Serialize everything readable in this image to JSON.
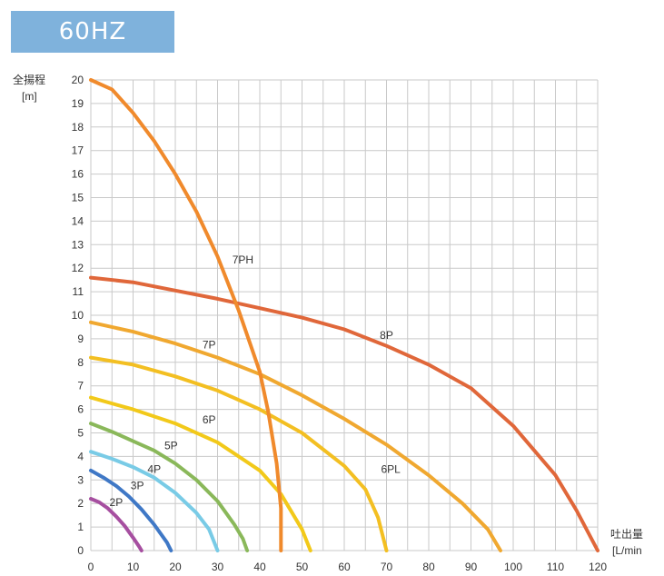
{
  "frequency_label": "60HZ",
  "chart_data": {
    "type": "line",
    "title": "",
    "ylabel": "全揚程",
    "yunit": "[m]",
    "xlabel": "吐出量",
    "xunit": "[L/min",
    "xlim": [
      0,
      120
    ],
    "ylim": [
      0,
      20
    ],
    "xticks": [
      0,
      10,
      20,
      30,
      40,
      50,
      60,
      70,
      80,
      90,
      100,
      110,
      120
    ],
    "yticks": [
      0,
      1,
      2,
      3,
      4,
      5,
      6,
      7,
      8,
      9,
      10,
      11,
      12,
      13,
      14,
      15,
      16,
      17,
      18,
      19,
      20
    ],
    "grid": true,
    "series": [
      {
        "name": "2P",
        "color": "#a64fa0",
        "label_at": [
          6,
          1.9
        ],
        "x": [
          0,
          2,
          4,
          6,
          8,
          10,
          11.5,
          12
        ],
        "y": [
          2.2,
          2.05,
          1.8,
          1.45,
          1.05,
          0.55,
          0.15,
          0
        ]
      },
      {
        "name": "3P",
        "color": "#3f78c6",
        "label_at": [
          11,
          2.6
        ],
        "x": [
          0,
          3,
          6,
          9,
          12,
          15,
          18,
          19
        ],
        "y": [
          3.4,
          3.1,
          2.75,
          2.3,
          1.75,
          1.1,
          0.35,
          0
        ]
      },
      {
        "name": "4P",
        "color": "#79cbe6",
        "label_at": [
          15,
          3.3
        ],
        "x": [
          0,
          5,
          10,
          15,
          20,
          25,
          28,
          30
        ],
        "y": [
          4.2,
          3.9,
          3.55,
          3.1,
          2.45,
          1.6,
          0.9,
          0
        ]
      },
      {
        "name": "5P",
        "color": "#8ab85a",
        "label_at": [
          19,
          4.3
        ],
        "x": [
          0,
          5,
          10,
          15,
          20,
          25,
          30,
          34,
          36,
          37
        ],
        "y": [
          5.4,
          5.05,
          4.65,
          4.25,
          3.7,
          3.0,
          2.1,
          1.1,
          0.5,
          0
        ]
      },
      {
        "name": "6P",
        "color": "#f2c91a",
        "label_at": [
          28,
          5.4
        ],
        "x": [
          0,
          10,
          20,
          30,
          40,
          45,
          50,
          52
        ],
        "y": [
          6.5,
          6.0,
          5.4,
          4.6,
          3.4,
          2.4,
          0.9,
          0
        ]
      },
      {
        "name": "6PL",
        "color": "#f3bf22",
        "label_at": [
          71,
          3.3
        ],
        "x": [
          0,
          10,
          20,
          30,
          40,
          50,
          60,
          65,
          68,
          70
        ],
        "y": [
          8.2,
          7.9,
          7.4,
          6.8,
          6.0,
          5.0,
          3.6,
          2.6,
          1.4,
          0
        ]
      },
      {
        "name": "7P",
        "color": "#f0a830",
        "label_at": [
          28,
          8.6
        ],
        "x": [
          0,
          10,
          20,
          30,
          40,
          50,
          60,
          70,
          80,
          88,
          94,
          97
        ],
        "y": [
          9.7,
          9.3,
          8.8,
          8.2,
          7.5,
          6.6,
          5.6,
          4.5,
          3.2,
          2.0,
          0.9,
          0
        ]
      },
      {
        "name": "8P",
        "color": "#e0673a",
        "label_at": [
          70,
          9.0
        ],
        "x": [
          0,
          10,
          20,
          30,
          40,
          50,
          60,
          70,
          80,
          90,
          100,
          110,
          115,
          120
        ],
        "y": [
          11.6,
          11.4,
          11.05,
          10.7,
          10.3,
          9.9,
          9.4,
          8.7,
          7.9,
          6.9,
          5.3,
          3.2,
          1.7,
          0
        ]
      },
      {
        "name": "7PH",
        "color": "#f08a2c",
        "label_at": [
          36,
          12.2
        ],
        "x": [
          0,
          5,
          10,
          15,
          20,
          25,
          30,
          35,
          40,
          42,
          44,
          45,
          45
        ],
        "y": [
          20,
          19.6,
          18.6,
          17.4,
          16.0,
          14.4,
          12.5,
          10.2,
          7.6,
          5.9,
          3.7,
          1.8,
          0
        ]
      }
    ]
  }
}
